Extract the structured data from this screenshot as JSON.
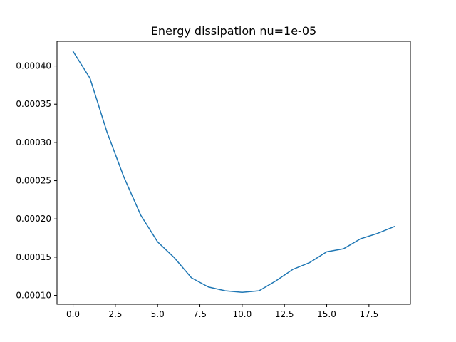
{
  "chart_data": {
    "type": "line",
    "title": "Energy dissipation nu=1e-05",
    "xlabel": "",
    "ylabel": "",
    "xlim": [
      -0.95,
      19.95
    ],
    "ylim": [
      8.84e-05,
      0.0004322
    ],
    "grid": false,
    "legend": "none",
    "x_ticks": [
      0.0,
      2.5,
      5.0,
      7.5,
      10.0,
      12.5,
      15.0,
      17.5
    ],
    "x_tick_labels": [
      "0.0",
      "2.5",
      "5.0",
      "7.5",
      "10.0",
      "12.5",
      "15.0",
      "17.5"
    ],
    "y_ticks": [
      0.0001,
      0.00015,
      0.0002,
      0.00025,
      0.0003,
      0.00035,
      0.0004
    ],
    "y_tick_labels": [
      "0.00010",
      "0.00015",
      "0.00020",
      "0.00025",
      "0.00030",
      "0.00035",
      "0.00040"
    ],
    "series": [
      {
        "color": "#1f77b4",
        "x": [
          0,
          1,
          2,
          3,
          4,
          5,
          6,
          7,
          8,
          9,
          10,
          11,
          12,
          13,
          14,
          15,
          16,
          17,
          18,
          19
        ],
        "y": [
          0.000419,
          0.000384,
          0.000314,
          0.000255,
          0.000205,
          0.00017,
          0.000149,
          0.000123,
          0.000111,
          0.000106,
          0.000104,
          0.000106,
          0.000119,
          0.000134,
          0.000143,
          0.000157,
          0.000161,
          0.000174,
          0.000181,
          0.00019
        ]
      }
    ]
  }
}
